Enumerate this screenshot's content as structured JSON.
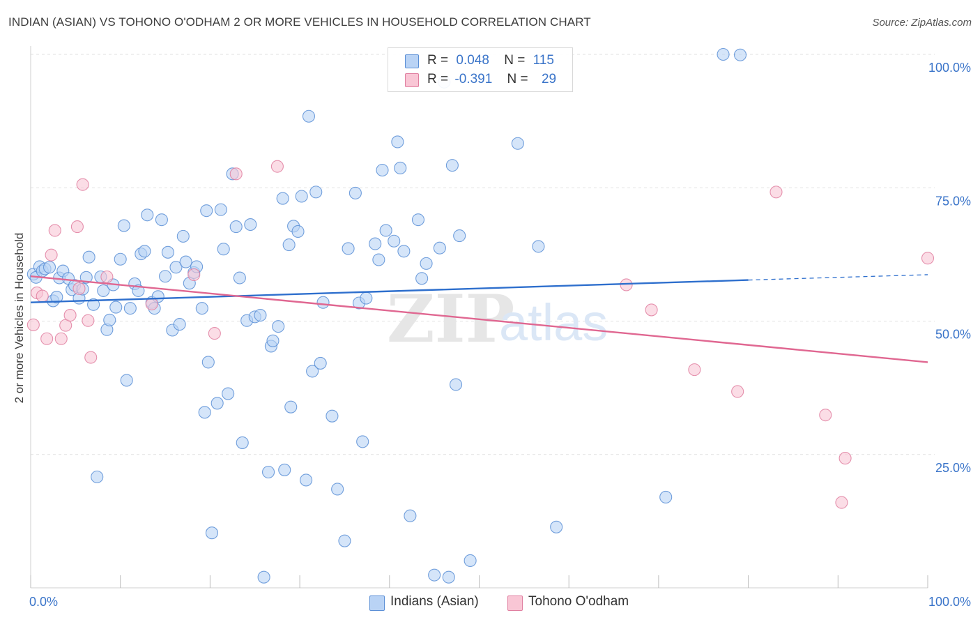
{
  "title": "INDIAN (ASIAN) VS TOHONO O'ODHAM 2 OR MORE VEHICLES IN HOUSEHOLD CORRELATION CHART",
  "source": "Source: ZipAtlas.com",
  "watermark": {
    "part1": "ZIP",
    "part2": "atlas"
  },
  "legend": {
    "r_label": "R =",
    "n_label": "N =",
    "series": [
      {
        "r": "0.048",
        "n": "115"
      },
      {
        "r": "-0.391",
        "n": "29"
      }
    ]
  },
  "chart_data": {
    "type": "scatter",
    "ylabel": "2 or more Vehicles in Household",
    "xlim": [
      0,
      100
    ],
    "ylim": [
      0,
      100
    ],
    "x_tick_labels": [
      "0.0%",
      "100.0%"
    ],
    "y_tick_labels": [
      "25.0%",
      "50.0%",
      "75.0%",
      "100.0%"
    ],
    "y_tick_values": [
      25,
      50,
      75,
      100
    ],
    "grid": true,
    "legend_position": "top-center",
    "colors": {
      "indians_fill": "#b9d3f5",
      "indians_stroke": "#5b8fd6",
      "indians_line": "#2e6fcd",
      "tohono_fill": "#f9c6d5",
      "tohono_stroke": "#e07fa0",
      "tohono_line": "#e06791",
      "tick_label": "#3a74c9"
    },
    "series": [
      {
        "name": "Indians (Asian)",
        "trend": {
          "x": [
            0,
            80
          ],
          "y": [
            53.5,
            57.7
          ],
          "dashed_to": [
            100,
            58.7
          ]
        },
        "points": [
          [
            0.3,
            58.8
          ],
          [
            0.6,
            58.2
          ],
          [
            1.0,
            60.2
          ],
          [
            1.3,
            59.4
          ],
          [
            1.6,
            59.8
          ],
          [
            2.1,
            60.1
          ],
          [
            2.5,
            53.8
          ],
          [
            2.9,
            54.5
          ],
          [
            3.2,
            58.1
          ],
          [
            3.6,
            59.4
          ],
          [
            4.2,
            58.0
          ],
          [
            4.6,
            55.9
          ],
          [
            4.9,
            56.7
          ],
          [
            5.4,
            54.3
          ],
          [
            5.8,
            56.0
          ],
          [
            6.2,
            58.2
          ],
          [
            6.5,
            62.0
          ],
          [
            7.0,
            53.1
          ],
          [
            7.4,
            20.8
          ],
          [
            7.8,
            58.3
          ],
          [
            8.1,
            55.7
          ],
          [
            8.5,
            48.4
          ],
          [
            8.8,
            50.2
          ],
          [
            9.2,
            56.8
          ],
          [
            9.5,
            52.6
          ],
          [
            10.0,
            61.6
          ],
          [
            10.4,
            67.9
          ],
          [
            10.7,
            38.9
          ],
          [
            11.1,
            52.4
          ],
          [
            11.6,
            57.0
          ],
          [
            12.0,
            55.7
          ],
          [
            12.3,
            62.6
          ],
          [
            12.7,
            63.1
          ],
          [
            13.0,
            69.9
          ],
          [
            13.5,
            53.5
          ],
          [
            13.8,
            52.4
          ],
          [
            14.2,
            54.6
          ],
          [
            14.6,
            69.0
          ],
          [
            15.0,
            58.4
          ],
          [
            15.3,
            62.9
          ],
          [
            15.8,
            48.3
          ],
          [
            16.2,
            60.1
          ],
          [
            16.6,
            49.4
          ],
          [
            17.0,
            65.9
          ],
          [
            17.3,
            61.1
          ],
          [
            17.7,
            57.1
          ],
          [
            18.2,
            59.1
          ],
          [
            18.5,
            60.2
          ],
          [
            19.1,
            52.4
          ],
          [
            19.4,
            32.9
          ],
          [
            19.6,
            70.7
          ],
          [
            19.8,
            42.3
          ],
          [
            20.2,
            10.3
          ],
          [
            20.8,
            34.6
          ],
          [
            21.2,
            70.9
          ],
          [
            21.5,
            63.5
          ],
          [
            22.0,
            36.4
          ],
          [
            22.5,
            77.6
          ],
          [
            22.9,
            67.7
          ],
          [
            23.3,
            58.1
          ],
          [
            23.6,
            27.2
          ],
          [
            24.1,
            50.1
          ],
          [
            24.5,
            68.1
          ],
          [
            25.0,
            50.8
          ],
          [
            25.6,
            51.1
          ],
          [
            26.0,
            2.0
          ],
          [
            26.5,
            21.7
          ],
          [
            26.8,
            45.3
          ],
          [
            27.0,
            46.3
          ],
          [
            27.6,
            49.0
          ],
          [
            28.1,
            73.0
          ],
          [
            28.3,
            22.1
          ],
          [
            28.8,
            64.3
          ],
          [
            29.0,
            33.9
          ],
          [
            29.3,
            67.8
          ],
          [
            29.8,
            66.8
          ],
          [
            30.2,
            73.4
          ],
          [
            30.7,
            20.2
          ],
          [
            31.0,
            88.4
          ],
          [
            31.4,
            40.6
          ],
          [
            31.8,
            74.2
          ],
          [
            32.3,
            42.1
          ],
          [
            32.6,
            53.5
          ],
          [
            33.6,
            32.2
          ],
          [
            34.2,
            18.5
          ],
          [
            35.0,
            8.8
          ],
          [
            35.4,
            63.6
          ],
          [
            36.2,
            74.0
          ],
          [
            36.6,
            53.4
          ],
          [
            37.0,
            27.4
          ],
          [
            37.4,
            54.3
          ],
          [
            38.4,
            64.5
          ],
          [
            38.8,
            61.5
          ],
          [
            39.2,
            78.3
          ],
          [
            39.6,
            67.0
          ],
          [
            40.5,
            65.0
          ],
          [
            40.9,
            83.6
          ],
          [
            41.2,
            78.7
          ],
          [
            41.6,
            63.1
          ],
          [
            42.3,
            13.5
          ],
          [
            43.2,
            69.0
          ],
          [
            43.6,
            58.0
          ],
          [
            44.1,
            60.8
          ],
          [
            45.0,
            2.4
          ],
          [
            45.6,
            63.7
          ],
          [
            46.1,
            94.8
          ],
          [
            46.6,
            2.0
          ],
          [
            47.0,
            79.2
          ],
          [
            47.4,
            38.1
          ],
          [
            47.8,
            66.0
          ],
          [
            49.0,
            5.1
          ],
          [
            54.3,
            83.3
          ],
          [
            56.6,
            64.0
          ],
          [
            58.6,
            11.4
          ],
          [
            70.8,
            17.0
          ],
          [
            77.2,
            100.0
          ],
          [
            79.1,
            99.9
          ]
        ]
      },
      {
        "name": "Tohono O'odham",
        "trend": {
          "x": [
            0,
            100
          ],
          "y": [
            58.4,
            42.3
          ]
        },
        "points": [
          [
            0.3,
            49.3
          ],
          [
            0.7,
            55.3
          ],
          [
            1.3,
            54.7
          ],
          [
            1.8,
            46.7
          ],
          [
            2.3,
            62.4
          ],
          [
            2.7,
            67.0
          ],
          [
            3.4,
            46.7
          ],
          [
            3.9,
            49.2
          ],
          [
            4.4,
            51.1
          ],
          [
            5.2,
            67.7
          ],
          [
            5.4,
            56.1
          ],
          [
            5.8,
            75.6
          ],
          [
            6.4,
            50.1
          ],
          [
            6.7,
            43.2
          ],
          [
            8.5,
            58.3
          ],
          [
            13.5,
            53.2
          ],
          [
            18.2,
            58.7
          ],
          [
            20.5,
            47.7
          ],
          [
            22.9,
            77.6
          ],
          [
            27.5,
            79.0
          ],
          [
            66.4,
            56.8
          ],
          [
            69.2,
            52.1
          ],
          [
            74.0,
            40.9
          ],
          [
            78.8,
            36.8
          ],
          [
            83.1,
            74.2
          ],
          [
            88.6,
            32.4
          ],
          [
            90.4,
            16.0
          ],
          [
            90.8,
            24.3
          ],
          [
            100.0,
            61.8
          ]
        ]
      }
    ]
  }
}
